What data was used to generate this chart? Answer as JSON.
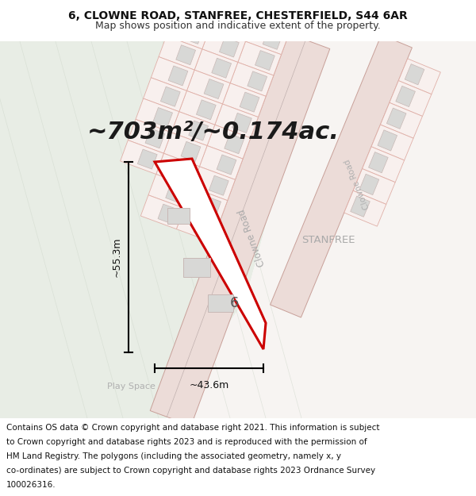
{
  "title_line1": "6, CLOWNE ROAD, STANFREE, CHESTERFIELD, S44 6AR",
  "title_line2": "Map shows position and indicative extent of the property.",
  "area_text": "~703m²/~0.174ac.",
  "dim_vertical": "~55.3m",
  "dim_horizontal": "~43.6m",
  "label_number": "6",
  "label_stanfree": "STANFREE",
  "label_clowne_road1": "Clowne Road",
  "label_clowne_road2": "Clowne Road",
  "label_play_space": "Play Space",
  "footer_lines": [
    "Contains OS data © Crown copyright and database right 2021. This information is subject",
    "to Crown copyright and database rights 2023 and is reproduced with the permission of",
    "HM Land Registry. The polygons (including the associated geometry, namely x, y",
    "co-ordinates) are subject to Crown copyright and database rights 2023 Ordnance Survey",
    "100026316."
  ],
  "bg_light": "#f0f3ee",
  "bg_green": "#e8ede5",
  "bg_white_road": "#f5f3f2",
  "road_fill": "#ecdcd8",
  "road_edge": "#c8a099",
  "road_center_line": "#c0b0ae",
  "property_fill": "#ffffff",
  "property_edge": "#cc0000",
  "building_fill": "#d8d8d6",
  "building_edge": "#c8b8b5",
  "lot_edge": "#e0b0a8",
  "lot_fill": "#f8f0ee",
  "dim_color": "#000000",
  "text_gray": "#aaaaaa",
  "text_dark": "#333333",
  "title_fs": 10,
  "subtitle_fs": 9,
  "area_fs": 22,
  "footer_fs": 7.5
}
